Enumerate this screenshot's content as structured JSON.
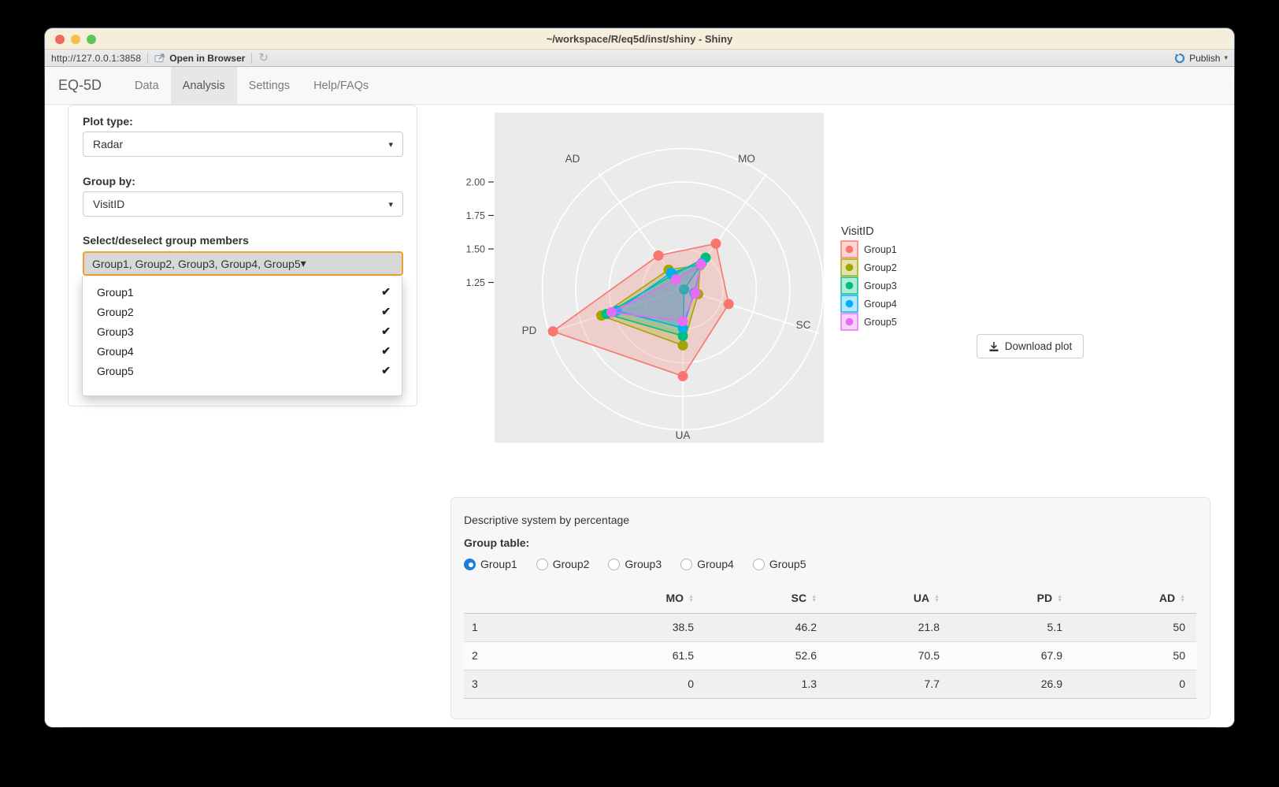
{
  "window": {
    "title": "~/workspace/R/eq5d/inst/shiny - Shiny"
  },
  "toolbar": {
    "url": "http://127.0.0.1:3858",
    "open_in_browser_label": "Open in Browser",
    "publish_label": "Publish"
  },
  "navbar": {
    "brand": "EQ-5D",
    "tabs": [
      {
        "label": "Data",
        "active": false
      },
      {
        "label": "Analysis",
        "active": true
      },
      {
        "label": "Settings",
        "active": false
      },
      {
        "label": "Help/FAQs",
        "active": false
      }
    ]
  },
  "sidebar": {
    "plot_type_label": "Plot type:",
    "plot_type_value": "Radar",
    "group_by_label": "Group by:",
    "group_by_value": "VisitID",
    "members_label": "Select/deselect group members",
    "members_value": "Group1, Group2, Group3, Group4, Group5",
    "dropdown_options": [
      {
        "label": "Group1",
        "checked": true
      },
      {
        "label": "Group2",
        "checked": true
      },
      {
        "label": "Group3",
        "checked": true
      },
      {
        "label": "Group4",
        "checked": true
      },
      {
        "label": "Group5",
        "checked": true
      }
    ]
  },
  "chart_data": {
    "type": "radar",
    "axes": [
      "MO",
      "SC",
      "UA",
      "PD",
      "AD"
    ],
    "radial_ticks": [
      "1.25",
      "1.50",
      "1.75",
      "2.00"
    ],
    "radial_range": [
      1.2,
      2.25
    ],
    "grid": true,
    "legend_title": "VisitID",
    "legend_position": "right",
    "series": [
      {
        "name": "Group1",
        "color": "#F8766D",
        "values": [
          1.62,
          1.56,
          1.85,
          2.22,
          1.51
        ]
      },
      {
        "name": "Group2",
        "color": "#A3A500",
        "values": [
          1.42,
          1.32,
          1.62,
          1.84,
          1.38
        ]
      },
      {
        "name": "Group3",
        "color": "#00BF7D",
        "values": [
          1.49,
          1.21,
          1.55,
          1.8,
          1.33
        ]
      },
      {
        "name": "Group4",
        "color": "#00B0F6",
        "values": [
          1.44,
          1.29,
          1.49,
          1.72,
          1.35
        ]
      },
      {
        "name": "Group5",
        "color": "#E76BF3",
        "values": [
          1.43,
          1.3,
          1.44,
          1.76,
          1.29
        ]
      }
    ]
  },
  "download_button": {
    "label": "Download plot"
  },
  "table_panel": {
    "title": "Descriptive system by percentage",
    "group_table_label": "Group table:",
    "radios": [
      {
        "label": "Group1",
        "selected": true
      },
      {
        "label": "Group2",
        "selected": false
      },
      {
        "label": "Group3",
        "selected": false
      },
      {
        "label": "Group4",
        "selected": false
      },
      {
        "label": "Group5",
        "selected": false
      }
    ],
    "columns": [
      "MO",
      "SC",
      "UA",
      "PD",
      "AD"
    ],
    "rows": [
      {
        "name": "1",
        "values": [
          "38.5",
          "46.2",
          "21.8",
          "5.1",
          "50"
        ]
      },
      {
        "name": "2",
        "values": [
          "61.5",
          "52.6",
          "70.5",
          "67.9",
          "50"
        ]
      },
      {
        "name": "3",
        "values": [
          "0",
          "1.3",
          "7.7",
          "26.9",
          "0"
        ]
      }
    ]
  },
  "colors": {
    "focus_border": "#EDA12F",
    "radio_selected": "#1E7BE0",
    "publish_icon": "#3E86C0",
    "plot_background": "#EBEBEB"
  }
}
